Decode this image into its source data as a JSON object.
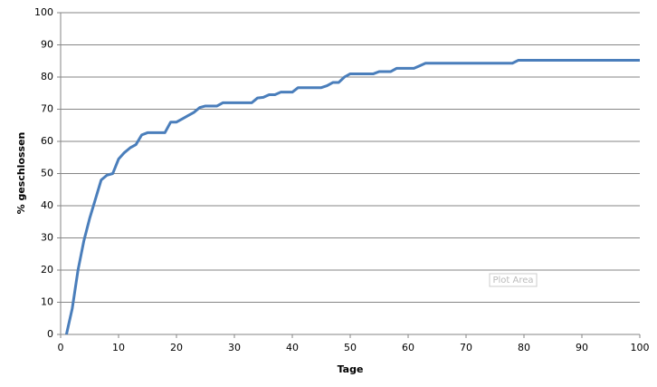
{
  "chart_data": {
    "type": "line",
    "xlabel": "Tage",
    "ylabel": "% geschlossen",
    "annotation": "Plot Area",
    "x": [
      1,
      2,
      3,
      4,
      5,
      6,
      7,
      8,
      9,
      10,
      11,
      12,
      13,
      14,
      15,
      16,
      17,
      18,
      19,
      20,
      21,
      22,
      23,
      24,
      25,
      26,
      27,
      28,
      29,
      30,
      31,
      32,
      33,
      34,
      35,
      36,
      37,
      38,
      39,
      40,
      41,
      42,
      43,
      44,
      45,
      46,
      47,
      48,
      49,
      50,
      51,
      52,
      53,
      54,
      55,
      56,
      57,
      58,
      59,
      60,
      61,
      62,
      63,
      64,
      65,
      66,
      67,
      68,
      69,
      70,
      71,
      72,
      73,
      74,
      75,
      76,
      77,
      78,
      79,
      80,
      81,
      82,
      83,
      84,
      85,
      86,
      87,
      88,
      89,
      90,
      91,
      92,
      93,
      94,
      95,
      96,
      97,
      98,
      99,
      100
    ],
    "series": [
      {
        "name": "% geschlossen",
        "color": "#4a7ebb",
        "values": [
          0,
          8,
          20,
          29,
          36,
          42,
          48,
          49.5,
          50,
          54.5,
          56.5,
          58,
          59,
          62,
          62.7,
          62.7,
          62.7,
          62.7,
          66,
          66,
          67,
          68,
          69,
          70.5,
          71,
          71,
          71,
          72,
          72,
          72,
          72,
          72,
          72,
          73.5,
          73.7,
          74.5,
          74.5,
          75.3,
          75.3,
          75.3,
          76.7,
          76.7,
          76.7,
          76.7,
          76.7,
          77.3,
          78.3,
          78.3,
          80,
          81,
          81,
          81,
          81,
          81,
          81.7,
          81.7,
          81.7,
          82.7,
          82.7,
          82.7,
          82.7,
          83.5,
          84.3,
          84.3,
          84.3,
          84.3,
          84.3,
          84.3,
          84.3,
          84.3,
          84.3,
          84.3,
          84.3,
          84.3,
          84.3,
          84.3,
          84.3,
          84.3,
          85.2,
          85.2,
          85.2,
          85.2,
          85.2,
          85.2,
          85.2,
          85.2,
          85.2,
          85.2,
          85.2,
          85.2,
          85.2,
          85.2,
          85.2,
          85.2,
          85.2,
          85.2,
          85.2,
          85.2,
          85.2,
          85.2
        ]
      }
    ],
    "xlim": [
      0,
      100
    ],
    "xticks": [
      0,
      10,
      20,
      30,
      40,
      50,
      60,
      70,
      80,
      90,
      100
    ],
    "ylim": [
      0,
      100
    ],
    "yticks": [
      0,
      10,
      20,
      30,
      40,
      50,
      60,
      70,
      80,
      90,
      100
    ],
    "grid": true
  }
}
